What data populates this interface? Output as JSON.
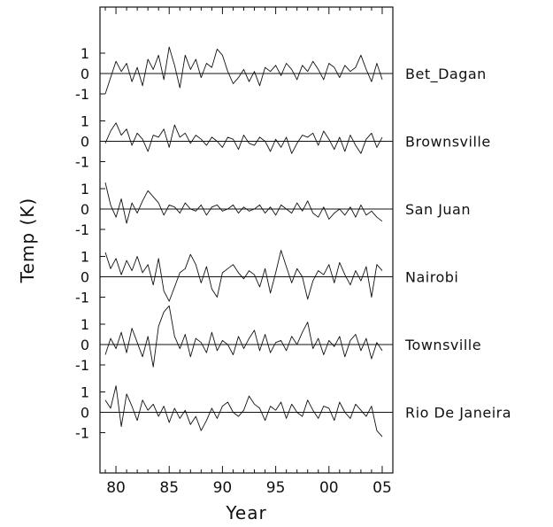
{
  "chart_data": {
    "type": "line",
    "xlabel": "Year",
    "ylabel": "Temp (K)",
    "xlim": [
      1978.5,
      2006
    ],
    "x_ticks": [
      {
        "value": 1980,
        "label": "80"
      },
      {
        "value": 1985,
        "label": "85"
      },
      {
        "value": 1990,
        "label": "90"
      },
      {
        "value": 1995,
        "label": "95"
      },
      {
        "value": 2000,
        "label": "00"
      },
      {
        "value": 2005,
        "label": "05"
      }
    ],
    "panel_ylim": [
      -1.5,
      1.5
    ],
    "y_ticks": [
      {
        "value": 1,
        "label": "1"
      },
      {
        "value": 0,
        "label": "0"
      },
      {
        "value": -1,
        "label": "-1"
      }
    ],
    "grid": false,
    "panels": [
      {
        "name": "Bet_Dagan",
        "x": [
          1979.0,
          1979.5,
          1980.0,
          1980.5,
          1981.0,
          1981.5,
          1982.0,
          1982.5,
          1983.0,
          1983.5,
          1984.0,
          1984.5,
          1985.0,
          1985.5,
          1986.0,
          1986.5,
          1987.0,
          1987.5,
          1988.0,
          1988.5,
          1989.0,
          1989.5,
          1990.0,
          1990.5,
          1991.0,
          1991.5,
          1992.0,
          1992.5,
          1993.0,
          1993.5,
          1994.0,
          1994.5,
          1995.0,
          1995.5,
          1996.0,
          1996.5,
          1997.0,
          1997.5,
          1998.0,
          1998.5,
          1999.0,
          1999.5,
          2000.0,
          2000.5,
          2001.0,
          2001.5,
          2002.0,
          2002.5,
          2003.0,
          2003.5,
          2004.0,
          2004.5,
          2005.0
        ],
        "values": [
          -1.0,
          -0.2,
          0.6,
          0.1,
          0.5,
          -0.4,
          0.3,
          -0.6,
          0.7,
          0.2,
          0.9,
          -0.3,
          1.3,
          0.4,
          -0.7,
          0.9,
          0.2,
          0.7,
          -0.2,
          0.5,
          0.3,
          1.2,
          0.9,
          0.1,
          -0.5,
          -0.2,
          0.2,
          -0.4,
          0.1,
          -0.6,
          0.3,
          0.1,
          0.4,
          -0.1,
          0.5,
          0.2,
          -0.3,
          0.4,
          0.1,
          0.6,
          0.2,
          -0.3,
          0.5,
          0.3,
          -0.2,
          0.4,
          0.1,
          0.3,
          0.9,
          0.2,
          -0.4,
          0.5,
          -0.3
        ]
      },
      {
        "name": "Brownsville",
        "x": [
          1979.0,
          1979.5,
          1980.0,
          1980.5,
          1981.0,
          1981.5,
          1982.0,
          1982.5,
          1983.0,
          1983.5,
          1984.0,
          1984.5,
          1985.0,
          1985.5,
          1986.0,
          1986.5,
          1987.0,
          1987.5,
          1988.0,
          1988.5,
          1989.0,
          1989.5,
          1990.0,
          1990.5,
          1991.0,
          1991.5,
          1992.0,
          1992.5,
          1993.0,
          1993.5,
          1994.0,
          1994.5,
          1995.0,
          1995.5,
          1996.0,
          1996.5,
          1997.0,
          1997.5,
          1998.0,
          1998.5,
          1999.0,
          1999.5,
          2000.0,
          2000.5,
          2001.0,
          2001.5,
          2002.0,
          2002.5,
          2003.0,
          2003.5,
          2004.0,
          2004.5,
          2005.0
        ],
        "values": [
          -0.1,
          0.5,
          0.9,
          0.3,
          0.6,
          -0.2,
          0.4,
          0.1,
          -0.5,
          0.3,
          0.2,
          0.6,
          -0.3,
          0.8,
          0.2,
          0.4,
          -0.1,
          0.3,
          0.1,
          -0.2,
          0.2,
          0.0,
          -0.3,
          0.2,
          0.1,
          -0.4,
          0.3,
          -0.1,
          -0.2,
          0.2,
          0.0,
          -0.5,
          0.1,
          -0.3,
          0.2,
          -0.6,
          -0.1,
          0.3,
          0.2,
          0.4,
          -0.2,
          0.5,
          0.1,
          -0.4,
          0.2,
          -0.5,
          0.3,
          -0.2,
          -0.6,
          0.1,
          0.4,
          -0.3,
          0.2
        ]
      },
      {
        "name": "San Juan",
        "x": [
          1979.0,
          1979.5,
          1980.0,
          1980.5,
          1981.0,
          1981.5,
          1982.0,
          1982.5,
          1983.0,
          1983.5,
          1984.0,
          1984.5,
          1985.0,
          1985.5,
          1986.0,
          1986.5,
          1987.0,
          1987.5,
          1988.0,
          1988.5,
          1989.0,
          1989.5,
          1990.0,
          1990.5,
          1991.0,
          1991.5,
          1992.0,
          1992.5,
          1993.0,
          1993.5,
          1994.0,
          1994.5,
          1995.0,
          1995.5,
          1996.0,
          1996.5,
          1997.0,
          1997.5,
          1998.0,
          1998.5,
          1999.0,
          1999.5,
          2000.0,
          2000.5,
          2001.0,
          2001.5,
          2002.0,
          2002.5,
          2003.0,
          2003.5,
          2004.0,
          2004.5,
          2005.0
        ],
        "values": [
          1.3,
          0.2,
          -0.4,
          0.5,
          -0.7,
          0.3,
          -0.2,
          0.4,
          0.9,
          0.6,
          0.3,
          -0.3,
          0.2,
          0.1,
          -0.2,
          0.3,
          0.0,
          -0.1,
          0.2,
          -0.3,
          0.1,
          0.2,
          -0.1,
          0.0,
          0.2,
          -0.2,
          0.1,
          -0.1,
          0.0,
          0.2,
          -0.2,
          0.1,
          -0.3,
          0.2,
          0.0,
          -0.2,
          0.3,
          -0.1,
          0.4,
          -0.2,
          -0.4,
          0.1,
          -0.5,
          -0.2,
          0.0,
          -0.3,
          0.1,
          -0.4,
          0.2,
          -0.3,
          -0.1,
          -0.4,
          -0.6
        ]
      },
      {
        "name": "Nairobi",
        "x": [
          1979.0,
          1979.5,
          1980.0,
          1980.5,
          1981.0,
          1981.5,
          1982.0,
          1982.5,
          1983.0,
          1983.5,
          1984.0,
          1984.5,
          1985.0,
          1985.5,
          1986.0,
          1986.5,
          1987.0,
          1987.5,
          1988.0,
          1988.5,
          1989.0,
          1989.5,
          1990.0,
          1990.5,
          1991.0,
          1991.5,
          1992.0,
          1992.5,
          1993.0,
          1993.5,
          1994.0,
          1994.5,
          1995.0,
          1995.5,
          1996.0,
          1996.5,
          1997.0,
          1997.5,
          1998.0,
          1998.5,
          1999.0,
          1999.5,
          2000.0,
          2000.5,
          2001.0,
          2001.5,
          2002.0,
          2002.5,
          2003.0,
          2003.5,
          2004.0,
          2004.5,
          2005.0
        ],
        "values": [
          1.2,
          0.4,
          0.9,
          0.1,
          0.8,
          0.3,
          1.0,
          0.2,
          0.6,
          -0.4,
          0.9,
          -0.7,
          -1.2,
          -0.5,
          0.2,
          0.4,
          1.1,
          0.6,
          -0.3,
          0.5,
          -0.6,
          -1.0,
          0.2,
          0.4,
          0.6,
          0.2,
          -0.1,
          0.3,
          0.1,
          -0.5,
          0.4,
          -0.8,
          0.2,
          1.3,
          0.5,
          -0.3,
          0.4,
          0.0,
          -1.1,
          -0.2,
          0.3,
          0.1,
          0.6,
          -0.3,
          0.7,
          0.1,
          -0.4,
          0.3,
          -0.2,
          0.5,
          -1.0,
          0.6,
          0.3
        ]
      },
      {
        "name": "Townsville",
        "x": [
          1979.0,
          1979.5,
          1980.0,
          1980.5,
          1981.0,
          1981.5,
          1982.0,
          1982.5,
          1983.0,
          1983.5,
          1984.0,
          1984.5,
          1985.0,
          1985.5,
          1986.0,
          1986.5,
          1987.0,
          1987.5,
          1988.0,
          1988.5,
          1989.0,
          1989.5,
          1990.0,
          1990.5,
          1991.0,
          1991.5,
          1992.0,
          1992.5,
          1993.0,
          1993.5,
          1994.0,
          1994.5,
          1995.0,
          1995.5,
          1996.0,
          1996.5,
          1997.0,
          1997.5,
          1998.0,
          1998.5,
          1999.0,
          1999.5,
          2000.0,
          2000.5,
          2001.0,
          2001.5,
          2002.0,
          2002.5,
          2003.0,
          2003.5,
          2004.0,
          2004.5,
          2005.0
        ],
        "values": [
          -0.5,
          0.3,
          -0.2,
          0.6,
          -0.4,
          0.8,
          0.1,
          -0.6,
          0.4,
          -1.1,
          0.9,
          1.6,
          1.9,
          0.4,
          -0.2,
          0.5,
          -0.6,
          0.3,
          0.1,
          -0.4,
          0.6,
          -0.3,
          0.2,
          0.0,
          -0.5,
          0.4,
          -0.2,
          0.3,
          0.7,
          -0.3,
          0.5,
          -0.4,
          0.1,
          0.2,
          -0.3,
          0.4,
          0.0,
          0.6,
          1.1,
          -0.2,
          0.3,
          -0.5,
          0.2,
          -0.1,
          0.4,
          -0.6,
          0.2,
          0.5,
          -0.3,
          0.3,
          -0.7,
          0.1,
          -0.3
        ]
      },
      {
        "name": "Rio De Janeira",
        "x": [
          1979.0,
          1979.5,
          1980.0,
          1980.5,
          1981.0,
          1981.5,
          1982.0,
          1982.5,
          1983.0,
          1983.5,
          1984.0,
          1984.5,
          1985.0,
          1985.5,
          1986.0,
          1986.5,
          1987.0,
          1987.5,
          1988.0,
          1988.5,
          1989.0,
          1989.5,
          1990.0,
          1990.5,
          1991.0,
          1991.5,
          1992.0,
          1992.5,
          1993.0,
          1993.5,
          1994.0,
          1994.5,
          1995.0,
          1995.5,
          1996.0,
          1996.5,
          1997.0,
          1997.5,
          1998.0,
          1998.5,
          1999.0,
          1999.5,
          2000.0,
          2000.5,
          2001.0,
          2001.5,
          2002.0,
          2002.5,
          2003.0,
          2003.5,
          2004.0,
          2004.5,
          2005.0
        ],
        "values": [
          0.6,
          0.2,
          1.3,
          -0.7,
          0.9,
          0.3,
          -0.4,
          0.6,
          0.1,
          0.4,
          -0.2,
          0.3,
          -0.5,
          0.2,
          -0.3,
          0.1,
          -0.6,
          -0.2,
          -0.9,
          -0.4,
          0.2,
          -0.3,
          0.3,
          0.5,
          0.0,
          -0.2,
          0.1,
          0.8,
          0.4,
          0.2,
          -0.4,
          0.3,
          0.1,
          0.5,
          -0.3,
          0.4,
          0.0,
          -0.2,
          0.6,
          0.1,
          -0.3,
          0.3,
          0.2,
          -0.4,
          0.5,
          0.0,
          -0.3,
          0.4,
          0.1,
          -0.2,
          0.3,
          -0.9,
          -1.2
        ]
      }
    ]
  }
}
